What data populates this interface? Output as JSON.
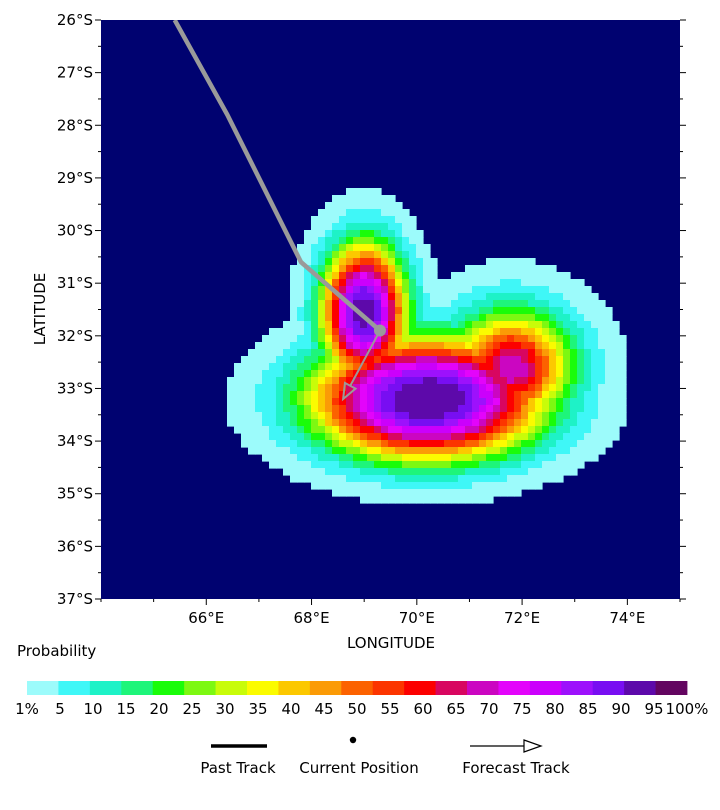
{
  "map": {
    "x_axis_label": "LONGITUDE",
    "y_axis_label": "LATITUDE",
    "x_ticks": [
      {
        "lon": 66,
        "label": "66°E"
      },
      {
        "lon": 68,
        "label": "68°E"
      },
      {
        "lon": 70,
        "label": "70°E"
      },
      {
        "lon": 72,
        "label": "72°E"
      },
      {
        "lon": 74,
        "label": "74°E"
      }
    ],
    "y_ticks": [
      {
        "lat": -26,
        "label": "26°S"
      },
      {
        "lat": -27,
        "label": "27°S"
      },
      {
        "lat": -28,
        "label": "28°S"
      },
      {
        "lat": -29,
        "label": "29°S"
      },
      {
        "lat": -30,
        "label": "30°S"
      },
      {
        "lat": -31,
        "label": "31°S"
      },
      {
        "lat": -32,
        "label": "32°S"
      },
      {
        "lat": -33,
        "label": "33°S"
      },
      {
        "lat": -34,
        "label": "34°S"
      },
      {
        "lat": -35,
        "label": "35°S"
      },
      {
        "lat": -36,
        "label": "36°S"
      },
      {
        "lat": -37,
        "label": "37°S"
      }
    ],
    "lon_range": [
      64.0,
      75.0
    ],
    "lat_range": [
      -37.0,
      -26.0
    ],
    "background_color": "#000270",
    "past_track": [
      [
        65.4,
        -26.0
      ],
      [
        66.4,
        -27.8
      ],
      [
        67.8,
        -30.6
      ],
      [
        69.3,
        -31.9
      ]
    ],
    "current_position": [
      69.3,
      -31.9
    ],
    "forecast_track": [
      [
        69.3,
        -31.9
      ],
      [
        68.6,
        -33.2
      ]
    ],
    "track_color": "#9a9a9a"
  },
  "legend": {
    "title": "Probability",
    "colors": [
      "#9cfbfb",
      "#3ff7f7",
      "#1ef2c7",
      "#1ef57a",
      "#1afc09",
      "#7df812",
      "#c8fc09",
      "#fbfb00",
      "#fcc800",
      "#fb9b06",
      "#fc6200",
      "#fc3500",
      "#fc0000",
      "#d80660",
      "#cb06c1",
      "#e304fb",
      "#cb00fc",
      "#9d11fc",
      "#780ef2",
      "#5d09aa",
      "#630560"
    ],
    "labels": [
      "1%",
      "5",
      "10",
      "15",
      "20",
      "25",
      "30",
      "35",
      "40",
      "45",
      "50",
      "55",
      "60",
      "65",
      "70",
      "75",
      "80",
      "85",
      "90",
      "95",
      "100%"
    ],
    "key": {
      "past_track": "Past Track",
      "current_position": "Current Position",
      "forecast_track": "Forecast Track"
    }
  }
}
